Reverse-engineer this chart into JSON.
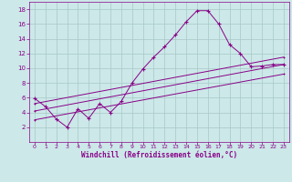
{
  "xlabel": "Windchill (Refroidissement éolien,°C)",
  "bg_color": "#cce8e8",
  "grid_color": "#a8c8c8",
  "line_color": "#880088",
  "xlim": [
    -0.5,
    23.5
  ],
  "ylim": [
    0,
    19
  ],
  "xticks": [
    0,
    1,
    2,
    3,
    4,
    5,
    6,
    7,
    8,
    9,
    10,
    11,
    12,
    13,
    14,
    15,
    16,
    17,
    18,
    19,
    20,
    21,
    22,
    23
  ],
  "yticks": [
    2,
    4,
    6,
    8,
    10,
    12,
    14,
    16,
    18
  ],
  "series1_x": [
    0,
    1,
    2,
    3,
    4,
    5,
    6,
    7,
    8,
    9,
    10,
    11,
    12,
    13,
    14,
    15,
    16,
    17,
    18,
    19,
    20,
    21,
    22,
    23
  ],
  "series1_y": [
    5.9,
    4.8,
    3.1,
    2.0,
    4.5,
    3.2,
    5.2,
    4.0,
    5.5,
    8.0,
    9.9,
    11.5,
    12.9,
    14.5,
    16.3,
    17.8,
    17.8,
    16.0,
    13.2,
    12.0,
    10.2,
    10.3,
    10.5,
    10.5
  ],
  "series2_x": [
    0,
    23
  ],
  "series2_y": [
    4.2,
    10.5
  ],
  "series3_x": [
    0,
    23
  ],
  "series3_y": [
    3.0,
    9.2
  ],
  "series4_x": [
    0,
    23
  ],
  "series4_y": [
    5.2,
    11.5
  ],
  "figsize": [
    3.2,
    2.0
  ],
  "dpi": 100
}
